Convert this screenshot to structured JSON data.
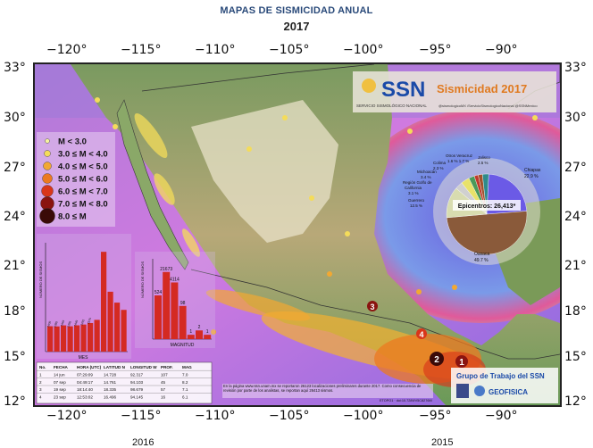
{
  "header": {
    "title": "MAPAS DE SISMICIDAD ANUAL",
    "year": "2017"
  },
  "lon_ticks": [
    "−120°",
    "−115°",
    "−110°",
    "−105°",
    "−100°",
    "−95°",
    "−90°"
  ],
  "lat_ticks_left": [
    "33°",
    "30°",
    "27°",
    "24°",
    "21°",
    "18°",
    "15°",
    "12°"
  ],
  "lat_ticks_right": [
    "33°",
    "30°",
    "27°",
    "24°",
    "21°",
    "18°",
    "15°",
    "12°"
  ],
  "bottom_labels": {
    "left": "2016",
    "right": "2015"
  },
  "banner": {
    "ssn": "SSN",
    "subtitle": "SERVICIO SISMOLÓGICO NACIONAL",
    "title": "Sismicidad 2017",
    "social": "@sismologicoMX   /ServicioSismologicoNacional   @SSNMexico"
  },
  "legend": {
    "items": [
      {
        "label": "M < 3.0",
        "color": "#f5f2a0"
      },
      {
        "label": "3.0 ≤ M < 4.0",
        "color": "#f4dc5a"
      },
      {
        "label": "4.0 ≤ M < 5.0",
        "color": "#f2a832"
      },
      {
        "label": "5.0 ≤ M < 6.0",
        "color": "#ec7a20"
      },
      {
        "label": "6.0 ≤ M < 7.0",
        "color": "#d9361a"
      },
      {
        "label": "7.0 ≤ M < 8.0",
        "color": "#8a1410"
      },
      {
        "label": "8.0 ≤ M",
        "color": "#3a0a08"
      }
    ]
  },
  "pie": {
    "center_label": "Epicentros: 26,413*",
    "slices": [
      {
        "name": "Chiapas",
        "pct": "22.9 %",
        "value": 22.9,
        "color": "#6b5ae6"
      },
      {
        "name": "Oaxaca",
        "pct": "49.7 %",
        "value": 49.7,
        "color": "#8a5a3a"
      },
      {
        "name": "Guerrero",
        "pct": "12.5 %",
        "value": 12.5,
        "color": "#d8dcb0"
      },
      {
        "name": "Región Golfo de California",
        "pct": "3.1 %",
        "value": 3.1,
        "color": "#d0d0d0"
      },
      {
        "name": "Michoacán",
        "pct": "3.4 %",
        "value": 3.4,
        "color": "#e8e26a"
      },
      {
        "name": "Colima",
        "pct": "2.3 %",
        "value": 2.3,
        "color": "#4a9a5a"
      },
      {
        "name": "Otros",
        "pct": "1.6 %",
        "value": 1.6,
        "color": "#c0392b"
      },
      {
        "name": "Veracruz",
        "pct": "1.7 %",
        "value": 1.7,
        "color": "#a0522d"
      },
      {
        "name": "Jalisco",
        "pct": "2.5 %",
        "value": 2.5,
        "color": "#2e8b8b"
      }
    ],
    "labels": {
      "otros_veracruz": "Otros Veracruz",
      "otros_pcts": "1.6 %  1.7 %",
      "jalisco": "Jalisco",
      "jalisco_pct": "2.5 %",
      "colima": "Colima",
      "colima_pct": "2.3 %",
      "michoacan": "Michoacán",
      "michoacan_pct": "3.4 %",
      "golfo": "Región Golfo de",
      "golfo2": "California",
      "golfo_pct": "3.1 %",
      "guerrero": "Guerrero",
      "guerrero_pct": "12.5 %",
      "chiapas": "Chiapas",
      "chiapas_pct": "22.9 %",
      "oaxaca": "Oaxaca",
      "oaxaca_pct": "49.7 %"
    }
  },
  "chart_data": [
    {
      "type": "bar",
      "xlabel": "MES",
      "ylabel": "NÚMERO DE SISMOS",
      "categories": [
        "Ene",
        "Feb",
        "Mar",
        "Abr",
        "May",
        "Jun",
        "Jul",
        "Ago",
        "Sep",
        "Oct",
        "Nov",
        "Dic"
      ],
      "values": [
        1400,
        1389,
        1446,
        1395,
        1449,
        1492,
        1575,
        1750,
        5500,
        3300,
        2700,
        2300
      ]
    },
    {
      "type": "bar",
      "xlabel": "MAGNITUD",
      "ylabel": "NÚMERO DE SISMOS",
      "log_scale": true,
      "categories": [
        "2",
        "3",
        "4",
        "5",
        "6",
        "7",
        "8"
      ],
      "values": [
        524,
        21673,
        4114,
        98,
        1,
        2,
        1
      ]
    }
  ],
  "bar_labels_month": [
    "1400",
    "1389",
    "1446",
    "1395",
    "1449",
    "1492",
    "1575"
  ],
  "bar_labels_mag": [
    "524",
    "21673",
    "4114",
    "98",
    "1",
    "2",
    "1"
  ],
  "events_table": {
    "headers": [
      "No.",
      "FECHA",
      "HORA (UTC)",
      "LATITUD N",
      "LONGITUD W",
      "PROF.",
      "MAG"
    ],
    "rows": [
      [
        "1",
        "14 jun",
        "07:29:09",
        "14.728",
        "92.317",
        "107",
        "7.0"
      ],
      [
        "2",
        "07 sep",
        "04:49:17",
        "14.761",
        "94.103",
        "45",
        "8.2"
      ],
      [
        "3",
        "19 sep",
        "18:14:40",
        "18.335",
        "98.679",
        "57",
        "7.1"
      ],
      [
        "4",
        "23 sep",
        "12:53:02",
        "16.496",
        "94.145",
        "16",
        "6.1"
      ]
    ]
  },
  "footnote": "En la página www.ssn.unam.mx se reportaron 26123 localizaciones preliminares durante 2017. Como consecuencia de revisión por parte de los analistas, se reportan aquí 26413 sismos.",
  "credits": {
    "topo": "ETOPO1 · doi:10.7289/V5C8276M",
    "group": "Grupo de Trabajo del SSN",
    "geofisica": "GEOFISICA"
  },
  "event_markers": [
    "1",
    "2",
    "3",
    "4"
  ]
}
